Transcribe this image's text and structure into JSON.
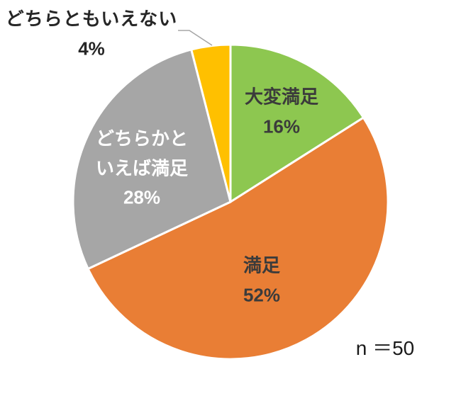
{
  "chart_data": {
    "type": "pie",
    "n_label": "n ＝50",
    "start_angle_deg": 0,
    "clockwise": true,
    "legend_position": "none",
    "slice_border_color": "#ffffff",
    "leader_line_color": "#A6A6A6",
    "slices": [
      {
        "label": "大変満足",
        "value": 16,
        "pct_label": "16%",
        "color": "#8DC750",
        "text_color": "#3B3B3B",
        "label_placement": "inside"
      },
      {
        "label": "満足",
        "value": 52,
        "pct_label": "52%",
        "color": "#E97E35",
        "text_color": "#3B3B3B",
        "label_placement": "inside"
      },
      {
        "label": "どちらかといえば満足",
        "value": 28,
        "pct_label": "28%",
        "color": "#A6A6A6",
        "text_color": "#FFFFFF",
        "label_placement": "inside"
      },
      {
        "label": "どちらともいえない",
        "value": 4,
        "pct_label": "4%",
        "color": "#FFC000",
        "text_color": "#262626",
        "label_placement": "outside"
      }
    ]
  }
}
